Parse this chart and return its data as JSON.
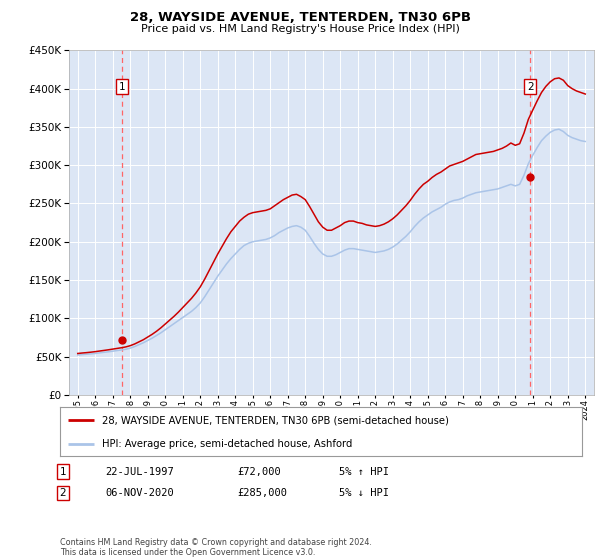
{
  "title": "28, WAYSIDE AVENUE, TENTERDEN, TN30 6PB",
  "subtitle": "Price paid vs. HM Land Registry's House Price Index (HPI)",
  "legend_line1": "28, WAYSIDE AVENUE, TENTERDEN, TN30 6PB (semi-detached house)",
  "legend_line2": "HPI: Average price, semi-detached house, Ashford",
  "footnote": "Contains HM Land Registry data © Crown copyright and database right 2024.\nThis data is licensed under the Open Government Licence v3.0.",
  "transactions": [
    {
      "label": "1",
      "date_str": "22-JUL-1997",
      "date_x": 1997.55,
      "price": 72000
    },
    {
      "label": "2",
      "date_str": "06-NOV-2020",
      "date_x": 2020.85,
      "price": 285000
    }
  ],
  "table_rows": [
    [
      "1",
      "22-JUL-1997",
      "£72,000",
      "5% ↑ HPI"
    ],
    [
      "2",
      "06-NOV-2020",
      "£285,000",
      "5% ↓ HPI"
    ]
  ],
  "hpi_color": "#aac4e8",
  "price_color": "#cc0000",
  "vline_color": "#ff6666",
  "marker_color": "#cc0000",
  "plot_bg": "#dce6f5",
  "ylim": [
    0,
    450000
  ],
  "yticks": [
    0,
    50000,
    100000,
    150000,
    200000,
    250000,
    300000,
    350000,
    400000,
    450000
  ],
  "xlim": [
    1994.5,
    2024.5
  ],
  "grid_color": "#ffffff",
  "hpi_years": [
    1995,
    1995.25,
    1995.5,
    1995.75,
    1996,
    1996.25,
    1996.5,
    1996.75,
    1997,
    1997.25,
    1997.5,
    1997.75,
    1998,
    1998.25,
    1998.5,
    1998.75,
    1999,
    1999.25,
    1999.5,
    1999.75,
    2000,
    2000.25,
    2000.5,
    2000.75,
    2001,
    2001.25,
    2001.5,
    2001.75,
    2002,
    2002.25,
    2002.5,
    2002.75,
    2003,
    2003.25,
    2003.5,
    2003.75,
    2004,
    2004.25,
    2004.5,
    2004.75,
    2005,
    2005.25,
    2005.5,
    2005.75,
    2006,
    2006.25,
    2006.5,
    2006.75,
    2007,
    2007.25,
    2007.5,
    2007.75,
    2008,
    2008.25,
    2008.5,
    2008.75,
    2009,
    2009.25,
    2009.5,
    2009.75,
    2010,
    2010.25,
    2010.5,
    2010.75,
    2011,
    2011.25,
    2011.5,
    2011.75,
    2012,
    2012.25,
    2012.5,
    2012.75,
    2013,
    2013.25,
    2013.5,
    2013.75,
    2014,
    2014.25,
    2014.5,
    2014.75,
    2015,
    2015.25,
    2015.5,
    2015.75,
    2016,
    2016.25,
    2016.5,
    2016.75,
    2017,
    2017.25,
    2017.5,
    2017.75,
    2018,
    2018.25,
    2018.5,
    2018.75,
    2019,
    2019.25,
    2019.5,
    2019.75,
    2020,
    2020.25,
    2020.5,
    2020.75,
    2021,
    2021.25,
    2021.5,
    2021.75,
    2022,
    2022.25,
    2022.5,
    2022.75,
    2023,
    2023.25,
    2023.5,
    2023.75,
    2024
  ],
  "hpi_vals": [
    52000,
    52500,
    53000,
    53500,
    54000,
    54800,
    55500,
    56200,
    57000,
    57800,
    58600,
    59500,
    61000,
    63000,
    65500,
    68000,
    71000,
    74000,
    77500,
    81000,
    85000,
    89000,
    93000,
    97000,
    101000,
    105000,
    109000,
    114000,
    120000,
    128000,
    137000,
    146000,
    155000,
    163000,
    171000,
    178000,
    184000,
    190000,
    195000,
    198000,
    200000,
    201000,
    202000,
    203000,
    205000,
    208000,
    212000,
    215000,
    218000,
    220000,
    221000,
    219000,
    215000,
    207000,
    198000,
    190000,
    184000,
    181000,
    181000,
    183000,
    186000,
    189000,
    191000,
    191000,
    190000,
    189000,
    188000,
    187000,
    186000,
    187000,
    188000,
    190000,
    193000,
    197000,
    202000,
    207000,
    213000,
    220000,
    226000,
    231000,
    235000,
    239000,
    242000,
    245000,
    249000,
    252000,
    254000,
    255000,
    257000,
    260000,
    262000,
    264000,
    265000,
    266000,
    267000,
    268000,
    269000,
    271000,
    273000,
    275000,
    273000,
    275000,
    287000,
    302000,
    313000,
    323000,
    332000,
    338000,
    343000,
    346000,
    347000,
    344000,
    339000,
    336000,
    334000,
    332000,
    331000
  ],
  "red_vals": [
    54000,
    54600,
    55100,
    55700,
    56400,
    57200,
    58000,
    58800,
    59700,
    60600,
    61500,
    62600,
    64200,
    66400,
    69200,
    72000,
    75500,
    79000,
    83000,
    87500,
    92500,
    97500,
    102500,
    108000,
    114000,
    120000,
    126000,
    133000,
    141000,
    151000,
    162000,
    173000,
    184000,
    194000,
    204000,
    213000,
    220000,
    227000,
    232000,
    236000,
    238000,
    239000,
    240000,
    241000,
    243000,
    247000,
    251000,
    255000,
    258000,
    261000,
    262000,
    259000,
    255000,
    246000,
    236000,
    226000,
    219000,
    215000,
    215000,
    218000,
    221000,
    225000,
    227000,
    227000,
    225000,
    224000,
    222000,
    221000,
    220000,
    221000,
    223000,
    226000,
    230000,
    235000,
    241000,
    247000,
    254000,
    262000,
    269000,
    275000,
    279000,
    284000,
    288000,
    291000,
    295000,
    299000,
    301000,
    303000,
    305000,
    308000,
    311000,
    314000,
    315000,
    316000,
    317000,
    318000,
    320000,
    322000,
    325000,
    329000,
    326000,
    328000,
    342000,
    360000,
    372000,
    384000,
    395000,
    403000,
    409000,
    413000,
    414000,
    411000,
    404000,
    400000,
    397000,
    395000,
    393000
  ]
}
